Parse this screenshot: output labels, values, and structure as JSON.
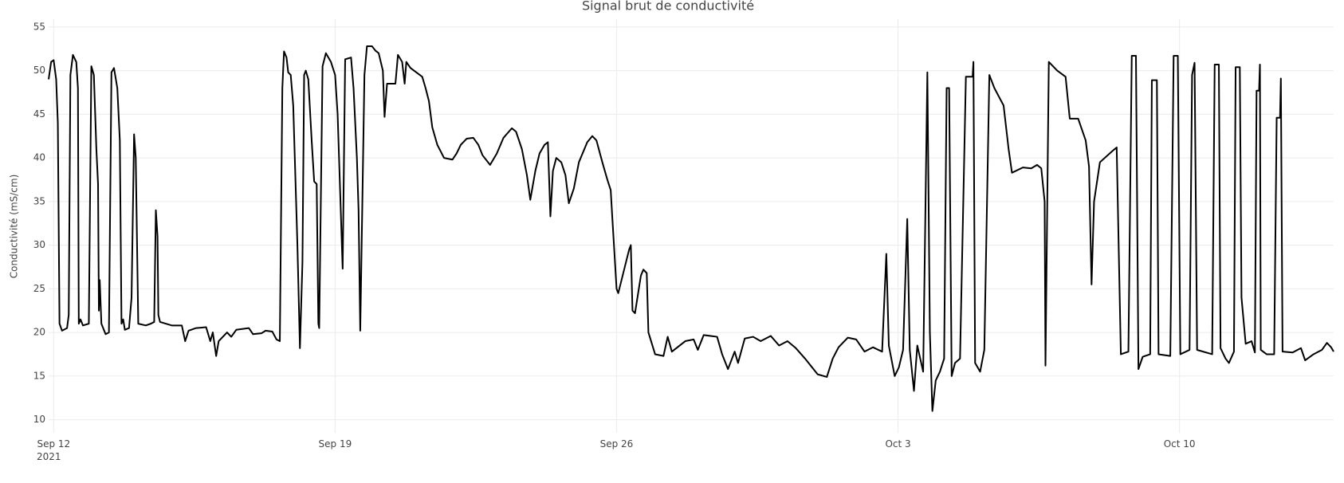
{
  "chart_data": {
    "type": "line",
    "title": "Signal brut de conductivité",
    "y_label": "Conductivité (mS/cm)",
    "color": "#000000",
    "grid": true,
    "xlim": [
      "2021-09-11T21:00",
      "2021-10-13T20:00"
    ],
    "ylim": [
      8.5,
      55.9
    ],
    "yticks": [
      10,
      15,
      20,
      25,
      30,
      35,
      40,
      45,
      50,
      55
    ],
    "xticks": [
      {
        "value": "2021-09-12",
        "label": "Sep 12\n2021"
      },
      {
        "value": "2021-09-19",
        "label": "Sep 19"
      },
      {
        "value": "2021-09-26",
        "label": "Sep 26"
      },
      {
        "value": "2021-10-03",
        "label": "Oct 3"
      },
      {
        "value": "2021-10-10",
        "label": "Oct 10"
      }
    ],
    "x": [
      "2021-09-11T21:00",
      "2021-09-11T22:30",
      "2021-09-12T00:00",
      "2021-09-12T01:30",
      "2021-09-12T02:30",
      "2021-09-12T03:30",
      "2021-09-12T05:00",
      "2021-09-12T08:00",
      "2021-09-12T09:00",
      "2021-09-12T10:00",
      "2021-09-12T11:30",
      "2021-09-12T13:30",
      "2021-09-12T14:30",
      "2021-09-12T15:00",
      "2021-09-12T16:00",
      "2021-09-12T17:30",
      "2021-09-12T21:00",
      "2021-09-12T22:30",
      "2021-09-13T00:00",
      "2021-09-13T01:30",
      "2021-09-13T02:30",
      "2021-09-13T03:00",
      "2021-09-13T03:30",
      "2021-09-13T04:30",
      "2021-09-13T07:00",
      "2021-09-13T09:00",
      "2021-09-13T10:30",
      "2021-09-13T12:00",
      "2021-09-13T14:00",
      "2021-09-13T15:30",
      "2021-09-13T16:30",
      "2021-09-13T17:30",
      "2021-09-13T18:30",
      "2021-09-13T21:00",
      "2021-09-13T22:30",
      "2021-09-14T00:00",
      "2021-09-14T01:00",
      "2021-09-14T02:30",
      "2021-09-14T07:00",
      "2021-09-14T10:00",
      "2021-09-14T12:00",
      "2021-09-14T13:00",
      "2021-09-14T14:00",
      "2021-09-14T14:30",
      "2021-09-14T15:30",
      "2021-09-14T22:30",
      "2021-09-15T04:30",
      "2021-09-15T06:30",
      "2021-09-15T08:30",
      "2021-09-15T13:00",
      "2021-09-15T19:00",
      "2021-09-15T21:30",
      "2021-09-15T23:00",
      "2021-09-16T01:00",
      "2021-09-16T02:30",
      "2021-09-16T07:30",
      "2021-09-16T10:00",
      "2021-09-16T13:00",
      "2021-09-16T20:30",
      "2021-09-16T23:00",
      "2021-09-17T04:00",
      "2021-09-17T06:30",
      "2021-09-17T10:30",
      "2021-09-17T13:00",
      "2021-09-17T15:00",
      "2021-09-17T16:30",
      "2021-09-17T17:30",
      "2021-09-17T19:00",
      "2021-09-17T20:00",
      "2021-09-17T21:30",
      "2021-09-17T23:00",
      "2021-09-18T01:30",
      "2021-09-18T03:00",
      "2021-09-18T04:30",
      "2021-09-18T05:30",
      "2021-09-18T06:30",
      "2021-09-18T08:00",
      "2021-09-18T10:00",
      "2021-09-18T11:30",
      "2021-09-18T13:00",
      "2021-09-18T14:00",
      "2021-09-18T14:30",
      "2021-09-18T16:30",
      "2021-09-18T18:30",
      "2021-09-18T21:30",
      "2021-09-19T00:00",
      "2021-09-19T01:30",
      "2021-09-19T04:30",
      "2021-09-19T06:00",
      "2021-09-19T09:30",
      "2021-09-19T11:00",
      "2021-09-19T13:00",
      "2021-09-19T14:00",
      "2021-09-19T15:00",
      "2021-09-19T17:30",
      "2021-09-19T19:00",
      "2021-09-19T22:00",
      "2021-09-20T00:00",
      "2021-09-20T02:00",
      "2021-09-20T04:30",
      "2021-09-20T05:30",
      "2021-09-20T07:00",
      "2021-09-20T12:00",
      "2021-09-20T13:30",
      "2021-09-20T16:00",
      "2021-09-20T17:30",
      "2021-09-20T18:30",
      "2021-09-20T21:00",
      "2021-09-21T00:30",
      "2021-09-21T04:00",
      "2021-09-21T06:00",
      "2021-09-21T08:00",
      "2021-09-21T10:00",
      "2021-09-21T13:00",
      "2021-09-21T17:00",
      "2021-09-21T22:00",
      "2021-09-22T00:30",
      "2021-09-22T03:00",
      "2021-09-22T06:30",
      "2021-09-22T10:30",
      "2021-09-22T13:30",
      "2021-09-22T16:00",
      "2021-09-22T20:30",
      "2021-09-23T00:30",
      "2021-09-23T04:30",
      "2021-09-23T09:30",
      "2021-09-23T12:00",
      "2021-09-23T15:30",
      "2021-09-23T18:30",
      "2021-09-23T20:30",
      "2021-09-23T23:30",
      "2021-09-24T02:00",
      "2021-09-24T05:00",
      "2021-09-24T07:00",
      "2021-09-24T08:30",
      "2021-09-24T10:00",
      "2021-09-24T12:00",
      "2021-09-24T15:00",
      "2021-09-24T17:30",
      "2021-09-24T19:30",
      "2021-09-24T22:30",
      "2021-09-25T01:30",
      "2021-09-25T06:30",
      "2021-09-25T09:30",
      "2021-09-25T12:00",
      "2021-09-25T15:30",
      "2021-09-25T18:30",
      "2021-09-25T20:30",
      "2021-09-25T21:30",
      "2021-09-26T00:00",
      "2021-09-26T01:00",
      "2021-09-26T07:30",
      "2021-09-26T08:30",
      "2021-09-26T09:30",
      "2021-09-26T11:00",
      "2021-09-26T14:30",
      "2021-09-26T16:00",
      "2021-09-26T18:00",
      "2021-09-26T19:00",
      "2021-09-26T23:00",
      "2021-09-27T04:00",
      "2021-09-27T06:30",
      "2021-09-27T09:00",
      "2021-09-27T17:00",
      "2021-09-27T22:00",
      "2021-09-28T00:30",
      "2021-09-28T04:00",
      "2021-09-28T12:00",
      "2021-09-28T15:00",
      "2021-09-28T18:30",
      "2021-09-28T22:30",
      "2021-09-29T00:30",
      "2021-09-29T04:30",
      "2021-09-29T09:30",
      "2021-09-29T14:00",
      "2021-09-29T20:00",
      "2021-09-30T01:00",
      "2021-09-30T06:00",
      "2021-09-30T11:00",
      "2021-09-30T16:30",
      "2021-10-01T00:00",
      "2021-10-01T05:30",
      "2021-10-01T09:00",
      "2021-10-01T12:30",
      "2021-10-01T18:00",
      "2021-10-01T23:00",
      "2021-10-02T04:00",
      "2021-10-02T09:00",
      "2021-10-02T14:30",
      "2021-10-02T17:00",
      "2021-10-02T18:30",
      "2021-10-02T22:00",
      "2021-10-03T00:30",
      "2021-10-03T03:00",
      "2021-10-03T05:30",
      "2021-10-03T07:00",
      "2021-10-03T09:30",
      "2021-10-03T11:30",
      "2021-10-03T15:00",
      "2021-10-03T17:30",
      "2021-10-03T19:00",
      "2021-10-03T20:30",
      "2021-10-03T22:30",
      "2021-10-04T01:00",
      "2021-10-04T03:30",
      "2021-10-04T05:00",
      "2021-10-04T06:30",
      "2021-10-04T08:00",
      "2021-10-04T10:00",
      "2021-10-04T13:00",
      "2021-10-04T16:30",
      "2021-10-04T20:30",
      "2021-10-04T21:00",
      "2021-10-04T22:00",
      "2021-10-05T01:00",
      "2021-10-05T03:30",
      "2021-10-05T06:30",
      "2021-10-05T09:30",
      "2021-10-05T15:00",
      "2021-10-05T18:00",
      "2021-10-05T20:00",
      "2021-10-06T02:30",
      "2021-10-06T07:30",
      "2021-10-06T11:00",
      "2021-10-06T13:30",
      "2021-10-06T15:30",
      "2021-10-06T16:00",
      "2021-10-06T18:00",
      "2021-10-06T23:00",
      "2021-10-07T04:00",
      "2021-10-07T06:30",
      "2021-10-07T11:30",
      "2021-10-07T16:00",
      "2021-10-07T18:00",
      "2021-10-07T19:30",
      "2021-10-07T21:00",
      "2021-10-08T00:30",
      "2021-10-08T08:00",
      "2021-10-08T10:30",
      "2021-10-08T13:00",
      "2021-10-08T17:30",
      "2021-10-08T19:30",
      "2021-10-08T22:00",
      "2021-10-08T23:30",
      "2021-10-09T02:00",
      "2021-10-09T06:30",
      "2021-10-09T07:30",
      "2021-10-09T10:30",
      "2021-10-09T11:30",
      "2021-10-09T18:30",
      "2021-10-09T20:30",
      "2021-10-09T23:00",
      "2021-10-10T00:30",
      "2021-10-10T06:00",
      "2021-10-10T07:30",
      "2021-10-10T09:00",
      "2021-10-10T10:30",
      "2021-10-10T19:30",
      "2021-10-10T21:00",
      "2021-10-10T23:30",
      "2021-10-11T00:30",
      "2021-10-11T03:30",
      "2021-10-11T05:30",
      "2021-10-11T08:30",
      "2021-10-11T09:30",
      "2021-10-11T12:00",
      "2021-10-11T13:00",
      "2021-10-11T15:30",
      "2021-10-11T19:00",
      "2021-10-11T21:00",
      "2021-10-11T22:00",
      "2021-10-11T23:30",
      "2021-10-12T00:00",
      "2021-10-12T00:30",
      "2021-10-12T04:00",
      "2021-10-12T08:30",
      "2021-10-12T10:00",
      "2021-10-12T12:00",
      "2021-10-12T12:30",
      "2021-10-12T13:30",
      "2021-10-12T19:30",
      "2021-10-13T00:30",
      "2021-10-13T03:00",
      "2021-10-13T08:00",
      "2021-10-13T13:00",
      "2021-10-13T16:00",
      "2021-10-13T18:30",
      "2021-10-13T20:00"
    ],
    "values": [
      49,
      51,
      51.2,
      49,
      44,
      21,
      20.2,
      20.5,
      22,
      49.5,
      51.8,
      51,
      48,
      21,
      21.5,
      20.8,
      21,
      50.5,
      49.5,
      41,
      37,
      22.5,
      26,
      21,
      19.8,
      20,
      49.8,
      50.3,
      48,
      42,
      21,
      21.5,
      20.3,
      20.5,
      24,
      42.7,
      40,
      21,
      20.8,
      21,
      21.2,
      34,
      31,
      22,
      21.2,
      20.8,
      20.8,
      19,
      20.2,
      20.5,
      20.6,
      19,
      20,
      17.3,
      19,
      20,
      19.5,
      20.3,
      20.5,
      19.8,
      19.9,
      20.2,
      20.1,
      19.2,
      19,
      48,
      52.2,
      51.5,
      49.8,
      49.5,
      46,
      30,
      18.2,
      28,
      49.5,
      50,
      49,
      42,
      37.3,
      37,
      21,
      20.5,
      50.5,
      52,
      51,
      49.5,
      45,
      27.3,
      51.3,
      51.5,
      48,
      40,
      34,
      20.2,
      49.5,
      52.8,
      52.8,
      52.3,
      52,
      50,
      44.7,
      48.5,
      48.5,
      51.8,
      51,
      48.5,
      51,
      50.3,
      49.8,
      49.3,
      48,
      46.5,
      43.5,
      41.5,
      40,
      39.8,
      40.5,
      41.5,
      42.2,
      42.3,
      41.5,
      40.3,
      39.2,
      40.5,
      42.3,
      43.4,
      43,
      41,
      38,
      35.2,
      38.5,
      40.5,
      41.5,
      41.8,
      33.3,
      38.5,
      40,
      39.5,
      38,
      34.8,
      36.5,
      39.5,
      41.8,
      42.5,
      42,
      39.5,
      37.5,
      36.3,
      33,
      25,
      24.5,
      29.5,
      30,
      22.5,
      22.2,
      26.5,
      27.2,
      26.8,
      20,
      17.5,
      17.3,
      19.5,
      17.8,
      19,
      19.2,
      18,
      19.7,
      19.5,
      17.5,
      15.8,
      17.8,
      16.5,
      19.3,
      19.5,
      19,
      19.6,
      18.5,
      19,
      18.2,
      17,
      15.2,
      14.9,
      17,
      18.3,
      19.4,
      19.2,
      17.8,
      18.3,
      17.8,
      29,
      18.5,
      15,
      16,
      18,
      33,
      18,
      13.3,
      18.5,
      15.5,
      49.8,
      20,
      11,
      14.5,
      15.5,
      17,
      48,
      48,
      15,
      16.5,
      17,
      49.3,
      49.3,
      51,
      16.5,
      15.5,
      18,
      49.5,
      48,
      46,
      41,
      38.3,
      38.9,
      38.8,
      39.2,
      38.8,
      35,
      16.2,
      51,
      50,
      49.3,
      44.5,
      44.5,
      42,
      39,
      25.5,
      35,
      39.5,
      40.8,
      41.2,
      17.5,
      17.8,
      51.7,
      51.7,
      15.8,
      17.2,
      17.5,
      48.9,
      48.9,
      17.5,
      17.3,
      51.7,
      51.7,
      17.5,
      18,
      49.5,
      50.9,
      18,
      17.5,
      50.7,
      50.7,
      18.2,
      17,
      16.5,
      17.8,
      50.4,
      50.4,
      24,
      18.7,
      19,
      17.7,
      47.7,
      47.7,
      50.7,
      18,
      17.5,
      17.5,
      44.6,
      44.6,
      49.1,
      17.8,
      17.7,
      18.2,
      16.8,
      17.5,
      18,
      18.8,
      18.3,
      17.8
    ]
  }
}
